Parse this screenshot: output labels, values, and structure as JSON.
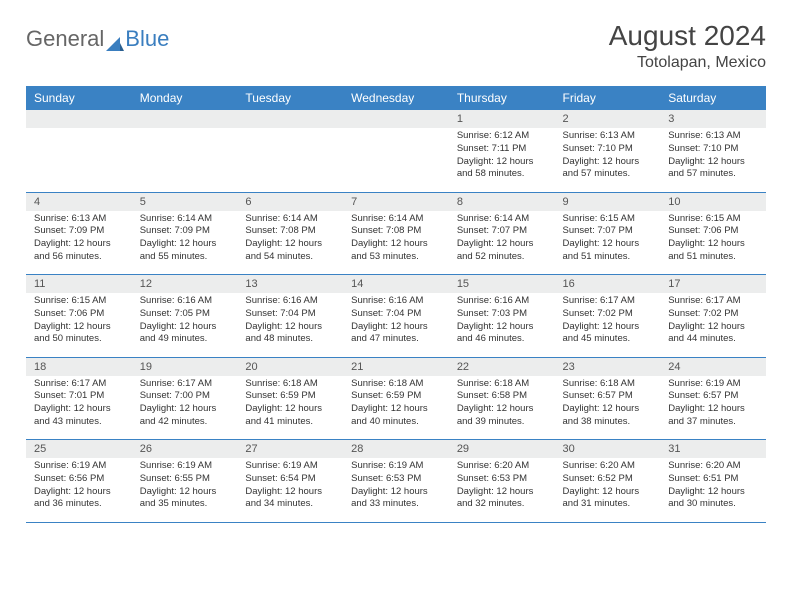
{
  "logo": {
    "text1": "General",
    "text2": "Blue"
  },
  "title": "August 2024",
  "location": "Totolapan, Mexico",
  "colors": {
    "header_bg": "#3a82c4",
    "header_fg": "#ffffff",
    "daynum_bg": "#eceded",
    "border": "#3a82c4",
    "text": "#333333",
    "logo_gray": "#666666",
    "logo_blue": "#3a7ebf"
  },
  "weekdays": [
    "Sunday",
    "Monday",
    "Tuesday",
    "Wednesday",
    "Thursday",
    "Friday",
    "Saturday"
  ],
  "weeks": [
    [
      null,
      null,
      null,
      null,
      {
        "d": "1",
        "sr": "6:12 AM",
        "ss": "7:11 PM",
        "dl": "12 hours and 58 minutes."
      },
      {
        "d": "2",
        "sr": "6:13 AM",
        "ss": "7:10 PM",
        "dl": "12 hours and 57 minutes."
      },
      {
        "d": "3",
        "sr": "6:13 AM",
        "ss": "7:10 PM",
        "dl": "12 hours and 57 minutes."
      }
    ],
    [
      {
        "d": "4",
        "sr": "6:13 AM",
        "ss": "7:09 PM",
        "dl": "12 hours and 56 minutes."
      },
      {
        "d": "5",
        "sr": "6:14 AM",
        "ss": "7:09 PM",
        "dl": "12 hours and 55 minutes."
      },
      {
        "d": "6",
        "sr": "6:14 AM",
        "ss": "7:08 PM",
        "dl": "12 hours and 54 minutes."
      },
      {
        "d": "7",
        "sr": "6:14 AM",
        "ss": "7:08 PM",
        "dl": "12 hours and 53 minutes."
      },
      {
        "d": "8",
        "sr": "6:14 AM",
        "ss": "7:07 PM",
        "dl": "12 hours and 52 minutes."
      },
      {
        "d": "9",
        "sr": "6:15 AM",
        "ss": "7:07 PM",
        "dl": "12 hours and 51 minutes."
      },
      {
        "d": "10",
        "sr": "6:15 AM",
        "ss": "7:06 PM",
        "dl": "12 hours and 51 minutes."
      }
    ],
    [
      {
        "d": "11",
        "sr": "6:15 AM",
        "ss": "7:06 PM",
        "dl": "12 hours and 50 minutes."
      },
      {
        "d": "12",
        "sr": "6:16 AM",
        "ss": "7:05 PM",
        "dl": "12 hours and 49 minutes."
      },
      {
        "d": "13",
        "sr": "6:16 AM",
        "ss": "7:04 PM",
        "dl": "12 hours and 48 minutes."
      },
      {
        "d": "14",
        "sr": "6:16 AM",
        "ss": "7:04 PM",
        "dl": "12 hours and 47 minutes."
      },
      {
        "d": "15",
        "sr": "6:16 AM",
        "ss": "7:03 PM",
        "dl": "12 hours and 46 minutes."
      },
      {
        "d": "16",
        "sr": "6:17 AM",
        "ss": "7:02 PM",
        "dl": "12 hours and 45 minutes."
      },
      {
        "d": "17",
        "sr": "6:17 AM",
        "ss": "7:02 PM",
        "dl": "12 hours and 44 minutes."
      }
    ],
    [
      {
        "d": "18",
        "sr": "6:17 AM",
        "ss": "7:01 PM",
        "dl": "12 hours and 43 minutes."
      },
      {
        "d": "19",
        "sr": "6:17 AM",
        "ss": "7:00 PM",
        "dl": "12 hours and 42 minutes."
      },
      {
        "d": "20",
        "sr": "6:18 AM",
        "ss": "6:59 PM",
        "dl": "12 hours and 41 minutes."
      },
      {
        "d": "21",
        "sr": "6:18 AM",
        "ss": "6:59 PM",
        "dl": "12 hours and 40 minutes."
      },
      {
        "d": "22",
        "sr": "6:18 AM",
        "ss": "6:58 PM",
        "dl": "12 hours and 39 minutes."
      },
      {
        "d": "23",
        "sr": "6:18 AM",
        "ss": "6:57 PM",
        "dl": "12 hours and 38 minutes."
      },
      {
        "d": "24",
        "sr": "6:19 AM",
        "ss": "6:57 PM",
        "dl": "12 hours and 37 minutes."
      }
    ],
    [
      {
        "d": "25",
        "sr": "6:19 AM",
        "ss": "6:56 PM",
        "dl": "12 hours and 36 minutes."
      },
      {
        "d": "26",
        "sr": "6:19 AM",
        "ss": "6:55 PM",
        "dl": "12 hours and 35 minutes."
      },
      {
        "d": "27",
        "sr": "6:19 AM",
        "ss": "6:54 PM",
        "dl": "12 hours and 34 minutes."
      },
      {
        "d": "28",
        "sr": "6:19 AM",
        "ss": "6:53 PM",
        "dl": "12 hours and 33 minutes."
      },
      {
        "d": "29",
        "sr": "6:20 AM",
        "ss": "6:53 PM",
        "dl": "12 hours and 32 minutes."
      },
      {
        "d": "30",
        "sr": "6:20 AM",
        "ss": "6:52 PM",
        "dl": "12 hours and 31 minutes."
      },
      {
        "d": "31",
        "sr": "6:20 AM",
        "ss": "6:51 PM",
        "dl": "12 hours and 30 minutes."
      }
    ]
  ],
  "labels": {
    "sunrise": "Sunrise:",
    "sunset": "Sunset:",
    "daylight": "Daylight:"
  }
}
